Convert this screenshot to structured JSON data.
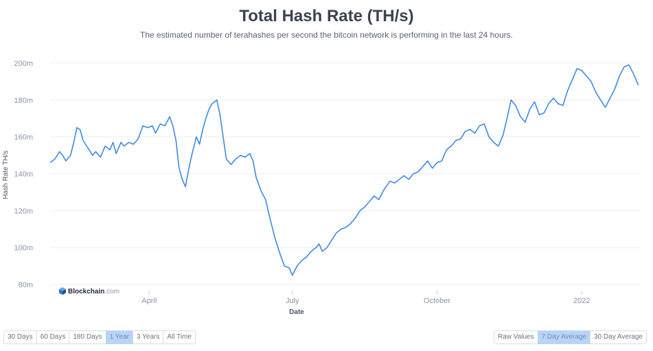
{
  "header": {
    "title": "Total Hash Rate (TH/s)",
    "subtitle": "The estimated number of terahashes per second the bitcoin network is performing in the last 24 hours."
  },
  "logo": {
    "brand": "Blockchain",
    "domain": ".com",
    "icon": "blockchain-cube-icon"
  },
  "colors": {
    "line": "#3d8ae0",
    "grid": "#eceef1",
    "axis_text": "#8a93a3",
    "active_button": "#b9d4f5"
  },
  "range_buttons": [
    {
      "label": "30 Days",
      "active": false
    },
    {
      "label": "60 Days",
      "active": false
    },
    {
      "label": "180 Days",
      "active": false
    },
    {
      "label": "1 Year",
      "active": true
    },
    {
      "label": "3 Years",
      "active": false
    },
    {
      "label": "All Time",
      "active": false
    }
  ],
  "avg_buttons": [
    {
      "label": "Raw Values",
      "active": false
    },
    {
      "label": "7 Day Average",
      "active": true
    },
    {
      "label": "30 Day Average",
      "active": false
    }
  ],
  "chart_data": {
    "type": "line",
    "title": "Total Hash Rate (TH/s)",
    "xlabel": "Date",
    "ylabel": "Hash Rate TH/s",
    "ylim": [
      80,
      200
    ],
    "y_ticks": [
      {
        "value": 80,
        "label": "80m"
      },
      {
        "value": 100,
        "label": "100m"
      },
      {
        "value": 120,
        "label": "120m"
      },
      {
        "value": 140,
        "label": "140m"
      },
      {
        "value": 160,
        "label": "160m"
      },
      {
        "value": 180,
        "label": "180m"
      },
      {
        "value": 200,
        "label": "200m"
      }
    ],
    "x_range": [
      "2021-01-28",
      "2022-02-07"
    ],
    "x_ticks": [
      {
        "date": "2021-04-01",
        "label": "April"
      },
      {
        "date": "2021-07-01",
        "label": "July"
      },
      {
        "date": "2021-10-01",
        "label": "October"
      },
      {
        "date": "2022-01-01",
        "label": "2022"
      }
    ],
    "grid": true,
    "units": "million TH/s",
    "series": [
      {
        "points": [
          [
            "2021-01-28",
            146
          ],
          [
            "2021-01-31",
            148
          ],
          [
            "2021-02-03",
            152
          ],
          [
            "2021-02-05",
            150
          ],
          [
            "2021-02-07",
            147
          ],
          [
            "2021-02-10",
            150
          ],
          [
            "2021-02-12",
            157
          ],
          [
            "2021-02-14",
            165
          ],
          [
            "2021-02-16",
            164
          ],
          [
            "2021-02-18",
            158
          ],
          [
            "2021-02-21",
            154
          ],
          [
            "2021-02-24",
            150
          ],
          [
            "2021-02-26",
            152
          ],
          [
            "2021-03-01",
            149
          ],
          [
            "2021-03-04",
            155
          ],
          [
            "2021-03-07",
            153
          ],
          [
            "2021-03-09",
            157
          ],
          [
            "2021-03-11",
            151
          ],
          [
            "2021-03-14",
            157
          ],
          [
            "2021-03-16",
            155
          ],
          [
            "2021-03-19",
            157
          ],
          [
            "2021-03-22",
            156
          ],
          [
            "2021-03-25",
            159
          ],
          [
            "2021-03-28",
            166
          ],
          [
            "2021-03-31",
            165
          ],
          [
            "2021-04-03",
            166
          ],
          [
            "2021-04-05",
            162
          ],
          [
            "2021-04-08",
            167
          ],
          [
            "2021-04-11",
            166
          ],
          [
            "2021-04-14",
            171
          ],
          [
            "2021-04-16",
            166
          ],
          [
            "2021-04-18",
            158
          ],
          [
            "2021-04-20",
            143
          ],
          [
            "2021-04-22",
            137
          ],
          [
            "2021-04-24",
            133
          ],
          [
            "2021-04-26",
            142
          ],
          [
            "2021-04-28",
            150
          ],
          [
            "2021-05-01",
            160
          ],
          [
            "2021-05-03",
            156
          ],
          [
            "2021-05-05",
            164
          ],
          [
            "2021-05-07",
            170
          ],
          [
            "2021-05-09",
            175
          ],
          [
            "2021-05-11",
            178
          ],
          [
            "2021-05-14",
            180
          ],
          [
            "2021-05-16",
            172
          ],
          [
            "2021-05-18",
            160
          ],
          [
            "2021-05-20",
            148
          ],
          [
            "2021-05-23",
            145
          ],
          [
            "2021-05-26",
            148
          ],
          [
            "2021-05-29",
            150
          ],
          [
            "2021-06-01",
            149
          ],
          [
            "2021-06-04",
            151
          ],
          [
            "2021-06-06",
            147
          ],
          [
            "2021-06-08",
            138
          ],
          [
            "2021-06-11",
            131
          ],
          [
            "2021-06-14",
            126
          ],
          [
            "2021-06-17",
            115
          ],
          [
            "2021-06-20",
            105
          ],
          [
            "2021-06-23",
            97
          ],
          [
            "2021-06-26",
            90
          ],
          [
            "2021-06-29",
            89
          ],
          [
            "2021-07-01",
            85
          ],
          [
            "2021-07-04",
            90
          ],
          [
            "2021-07-07",
            93
          ],
          [
            "2021-07-10",
            95
          ],
          [
            "2021-07-13",
            98
          ],
          [
            "2021-07-16",
            100
          ],
          [
            "2021-07-18",
            102
          ],
          [
            "2021-07-20",
            98
          ],
          [
            "2021-07-23",
            100
          ],
          [
            "2021-07-26",
            104
          ],
          [
            "2021-07-29",
            108
          ],
          [
            "2021-08-01",
            110
          ],
          [
            "2021-08-04",
            111
          ],
          [
            "2021-08-07",
            113
          ],
          [
            "2021-08-10",
            116
          ],
          [
            "2021-08-13",
            120
          ],
          [
            "2021-08-16",
            122
          ],
          [
            "2021-08-19",
            125
          ],
          [
            "2021-08-22",
            128
          ],
          [
            "2021-08-25",
            126
          ],
          [
            "2021-08-28",
            131
          ],
          [
            "2021-09-01",
            136
          ],
          [
            "2021-09-04",
            135
          ],
          [
            "2021-09-07",
            137
          ],
          [
            "2021-09-10",
            139
          ],
          [
            "2021-09-13",
            137
          ],
          [
            "2021-09-16",
            140
          ],
          [
            "2021-09-19",
            141
          ],
          [
            "2021-09-22",
            144
          ],
          [
            "2021-09-25",
            147
          ],
          [
            "2021-09-28",
            143
          ],
          [
            "2021-10-01",
            146
          ],
          [
            "2021-10-04",
            147
          ],
          [
            "2021-10-07",
            153
          ],
          [
            "2021-10-10",
            155
          ],
          [
            "2021-10-13",
            158
          ],
          [
            "2021-10-16",
            159
          ],
          [
            "2021-10-19",
            163
          ],
          [
            "2021-10-22",
            164
          ],
          [
            "2021-10-25",
            162
          ],
          [
            "2021-10-28",
            166
          ],
          [
            "2021-10-31",
            167
          ],
          [
            "2021-11-03",
            160
          ],
          [
            "2021-11-06",
            157
          ],
          [
            "2021-11-09",
            155
          ],
          [
            "2021-11-12",
            161
          ],
          [
            "2021-11-15",
            172
          ],
          [
            "2021-11-17",
            180
          ],
          [
            "2021-11-20",
            177
          ],
          [
            "2021-11-23",
            171
          ],
          [
            "2021-11-26",
            168
          ],
          [
            "2021-11-29",
            175
          ],
          [
            "2021-12-02",
            179
          ],
          [
            "2021-12-05",
            172
          ],
          [
            "2021-12-08",
            173
          ],
          [
            "2021-12-11",
            178
          ],
          [
            "2021-12-14",
            181
          ],
          [
            "2021-12-17",
            178
          ],
          [
            "2021-12-20",
            177
          ],
          [
            "2021-12-23",
            185
          ],
          [
            "2021-12-26",
            191
          ],
          [
            "2021-12-29",
            197
          ],
          [
            "2022-01-01",
            196
          ],
          [
            "2022-01-04",
            193
          ],
          [
            "2022-01-07",
            190
          ],
          [
            "2022-01-10",
            184
          ],
          [
            "2022-01-13",
            180
          ],
          [
            "2022-01-16",
            176
          ],
          [
            "2022-01-19",
            181
          ],
          [
            "2022-01-22",
            186
          ],
          [
            "2022-01-25",
            193
          ],
          [
            "2022-01-28",
            198
          ],
          [
            "2022-01-31",
            199
          ],
          [
            "2022-02-03",
            194
          ],
          [
            "2022-02-06",
            188
          ]
        ]
      }
    ]
  }
}
